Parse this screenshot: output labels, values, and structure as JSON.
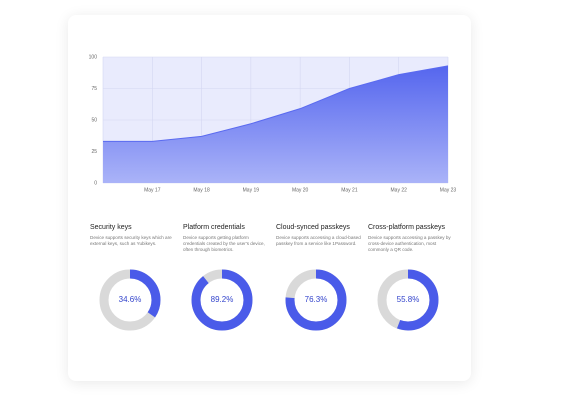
{
  "chart_data": {
    "type": "area",
    "categories": [
      null,
      "May 17",
      "May 18",
      "May 19",
      "May 20",
      "May 21",
      "May 22",
      "May 23"
    ],
    "values": [
      33,
      33,
      37,
      47,
      59,
      75,
      86,
      93
    ],
    "color": "#5a6af0",
    "ylim": [
      0,
      100
    ],
    "yticks": [
      0,
      25,
      50,
      75,
      100
    ],
    "grid": true
  },
  "cards": [
    {
      "title": "Security keys",
      "description": "Device supports security keys which are external keys, such as Yubikeys.",
      "value": 34.6,
      "value_label": "34.6%"
    },
    {
      "title": "Platform credentials",
      "description": "Device supports getting platform credentials created by the user's device, often through biometrics.",
      "value": 89.2,
      "value_label": "89.2%"
    },
    {
      "title": "Cloud-synced passkeys",
      "description": "Device supports accessing a cloud-based passkey from a service like 1Password.",
      "value": 76.3,
      "value_label": "76.3%"
    },
    {
      "title": "Cross-platform passkeys",
      "description": "Device supports accessing a passkey by cross-device authentication, most commonly a QR code.",
      "value": 55.8,
      "value_label": "55.8%"
    }
  ]
}
